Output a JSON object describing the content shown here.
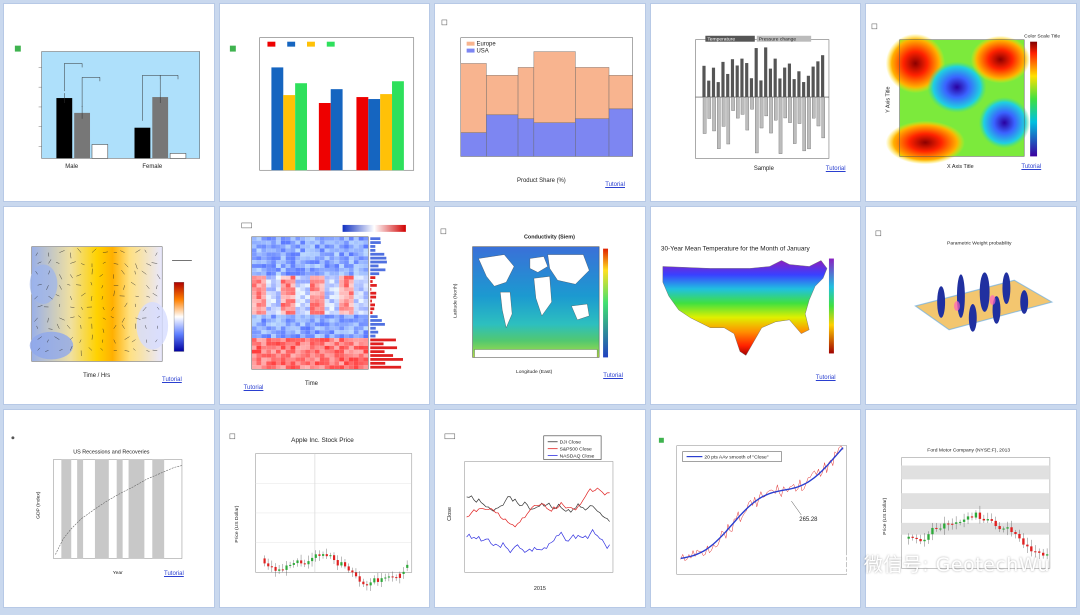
{
  "tiles": [
    {
      "id": "grouped-bar-significance",
      "legend": [
        "",
        "",
        ""
      ],
      "categories": [
        "Male",
        "Female"
      ],
      "tutorial": ""
    },
    {
      "id": "grouped-bar-colors",
      "tutorial": ""
    },
    {
      "id": "stacked-column",
      "legend": [
        "Europe",
        "USA"
      ],
      "xlabel": "Product Share (%)",
      "tutorial": "Tutorial"
    },
    {
      "id": "temperature-bars",
      "legend": [
        "Temperature",
        "Pressure change"
      ],
      "xlabel": "Sample",
      "tutorial": "Tutorial"
    },
    {
      "id": "contour-map",
      "title": "Color Scale Title",
      "xlabel": "X Axis Title",
      "ylabel": "Y Axis Title",
      "tutorial": "Tutorial"
    },
    {
      "id": "vector-contour",
      "xlabel": "Time / Hrs",
      "tutorial": "Tutorial"
    },
    {
      "id": "heatmap-bars",
      "xlabel": "Time",
      "tutorial": "Tutorial"
    },
    {
      "id": "world-conductivity",
      "title": "Conductivity (Siem)",
      "xlabel": "Longitude (East)",
      "ylabel": "Latitude (North)",
      "tutorial": "Tutorial"
    },
    {
      "id": "us-temperature",
      "title": "30-Year Mean Temperature for the Month of January",
      "tutorial": "Tutorial"
    },
    {
      "id": "3d-surface",
      "title": "Parametric Weight probability",
      "tutorial": ""
    },
    {
      "id": "us-recessions",
      "title": "US Recessions and Recoveries",
      "xlabel": "Year",
      "ylabel": "GDP (Index)",
      "tutorial": "Tutorial"
    },
    {
      "id": "apple-stock",
      "title": "Apple Inc. Stock Price",
      "xlabel": "",
      "ylabel": "Price (US Dollar)",
      "tutorial": ""
    },
    {
      "id": "index-close",
      "legend": [
        "DJI Close",
        "S&P500 Close",
        "NASDAQ Close"
      ],
      "xlabel": "2015",
      "ylabel": "Close",
      "tutorial": ""
    },
    {
      "id": "adjacent-average",
      "legend": [
        "20 pts AAv smooth of \"Close\""
      ],
      "annotation": "265.28",
      "tutorial": ""
    },
    {
      "id": "ford-stock",
      "title": "Ford Motor Company (NYSE:F), 2013",
      "ylabel": "Price (US Dollar)",
      "tutorial": ""
    }
  ],
  "watermark": {
    "text": "微信号: GeotechWu",
    "icon": "wechat-icon"
  },
  "colors": {
    "bg": "#c9d8ee",
    "tile_border": "#b7c9e6",
    "link": "#2a3fd0",
    "watermark": "#ffffff"
  }
}
